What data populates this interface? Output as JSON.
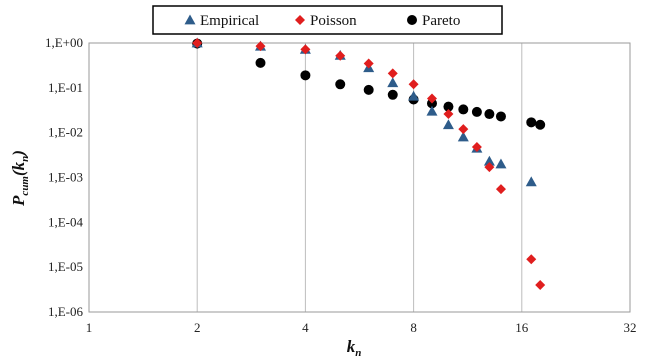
{
  "chart_data": {
    "type": "scatter",
    "title": "",
    "xscale": "log2",
    "yscale": "log10",
    "xlim": [
      1,
      32
    ],
    "ylim": [
      1e-06,
      1
    ],
    "x_ticks": [
      "1",
      "2",
      "4",
      "8",
      "16",
      "32"
    ],
    "y_ticks": [
      "1,E-06",
      "1,E-05",
      "1,E-04",
      "1,E-03",
      "1,E-02",
      "1,E-01",
      "1,E+00"
    ],
    "grid": "vertical major lines",
    "legend": "top-center, boxed",
    "xlabel": {
      "base": "k",
      "sub": "n"
    },
    "ylabel": {
      "base": "P",
      "sub1": "cum",
      "open": "(k",
      "sub2": "n",
      "close": ")"
    },
    "series": [
      {
        "name": "Empirical",
        "marker": "triangle",
        "color": "#2e5c8a",
        "points": [
          [
            2,
            1.0
          ],
          [
            3,
            0.85
          ],
          [
            4,
            0.72
          ],
          [
            5,
            0.53
          ],
          [
            6,
            0.28
          ],
          [
            7,
            0.13
          ],
          [
            8,
            0.065
          ],
          [
            9,
            0.03
          ],
          [
            10,
            0.015
          ],
          [
            11,
            0.008
          ],
          [
            12,
            0.0045
          ],
          [
            13,
            0.0023
          ],
          [
            14,
            0.002
          ],
          [
            17,
            0.0008
          ]
        ]
      },
      {
        "name": "Poisson",
        "marker": "diamond",
        "color": "#e01e1e",
        "points": [
          [
            2,
            1.0
          ],
          [
            3,
            0.85
          ],
          [
            4,
            0.72
          ],
          [
            5,
            0.52
          ],
          [
            6,
            0.35
          ],
          [
            7,
            0.21
          ],
          [
            8,
            0.12
          ],
          [
            9,
            0.058
          ],
          [
            10,
            0.026
          ],
          [
            11,
            0.012
          ],
          [
            12,
            0.0048
          ],
          [
            13,
            0.0017
          ],
          [
            14,
            0.00055
          ],
          [
            17,
            1.5e-05
          ],
          [
            18,
            4e-06
          ]
        ]
      },
      {
        "name": "Pareto",
        "marker": "circle",
        "color": "#000000",
        "points": [
          [
            2,
            0.97
          ],
          [
            3,
            0.36
          ],
          [
            4,
            0.19
          ],
          [
            5,
            0.12
          ],
          [
            6,
            0.09
          ],
          [
            7,
            0.07
          ],
          [
            8,
            0.055
          ],
          [
            9,
            0.045
          ],
          [
            10,
            0.038
          ],
          [
            11,
            0.033
          ],
          [
            12,
            0.029
          ],
          [
            13,
            0.026
          ],
          [
            14,
            0.023
          ],
          [
            17,
            0.017
          ],
          [
            18,
            0.015
          ]
        ]
      }
    ]
  }
}
